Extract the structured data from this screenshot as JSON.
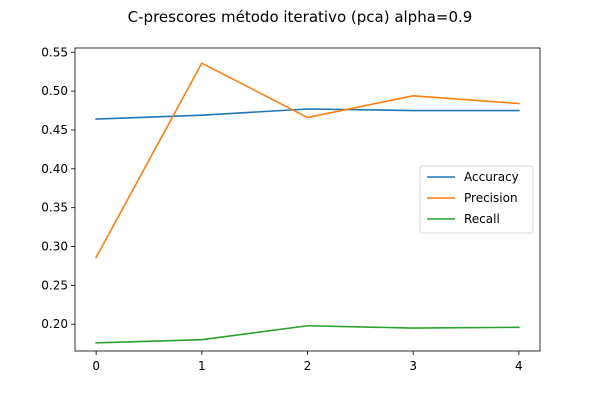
{
  "chart_data": {
    "type": "line",
    "title": "C-prescores método iterativo (pca) alpha=0.9",
    "xlabel": "",
    "ylabel": "",
    "x": [
      0,
      1,
      2,
      3,
      4
    ],
    "xticks": [
      "0",
      "1",
      "2",
      "3",
      "4"
    ],
    "yticks": [
      "0.20",
      "0.25",
      "0.30",
      "0.35",
      "0.40",
      "0.45",
      "0.50",
      "0.55"
    ],
    "xlim": [
      -0.2,
      4.2
    ],
    "ylim": [
      0.1655,
      0.5555
    ],
    "grid": false,
    "legend_position": "center-right",
    "series": [
      {
        "name": "Accuracy",
        "color": "#1f77b4",
        "values": [
          0.464,
          0.469,
          0.477,
          0.475,
          0.475
        ]
      },
      {
        "name": "Precision",
        "color": "#ff7f0e",
        "values": [
          0.286,
          0.536,
          0.466,
          0.494,
          0.484
        ]
      },
      {
        "name": "Recall",
        "color": "#2ca02c",
        "values": [
          0.176,
          0.18,
          0.198,
          0.195,
          0.196
        ]
      }
    ]
  }
}
